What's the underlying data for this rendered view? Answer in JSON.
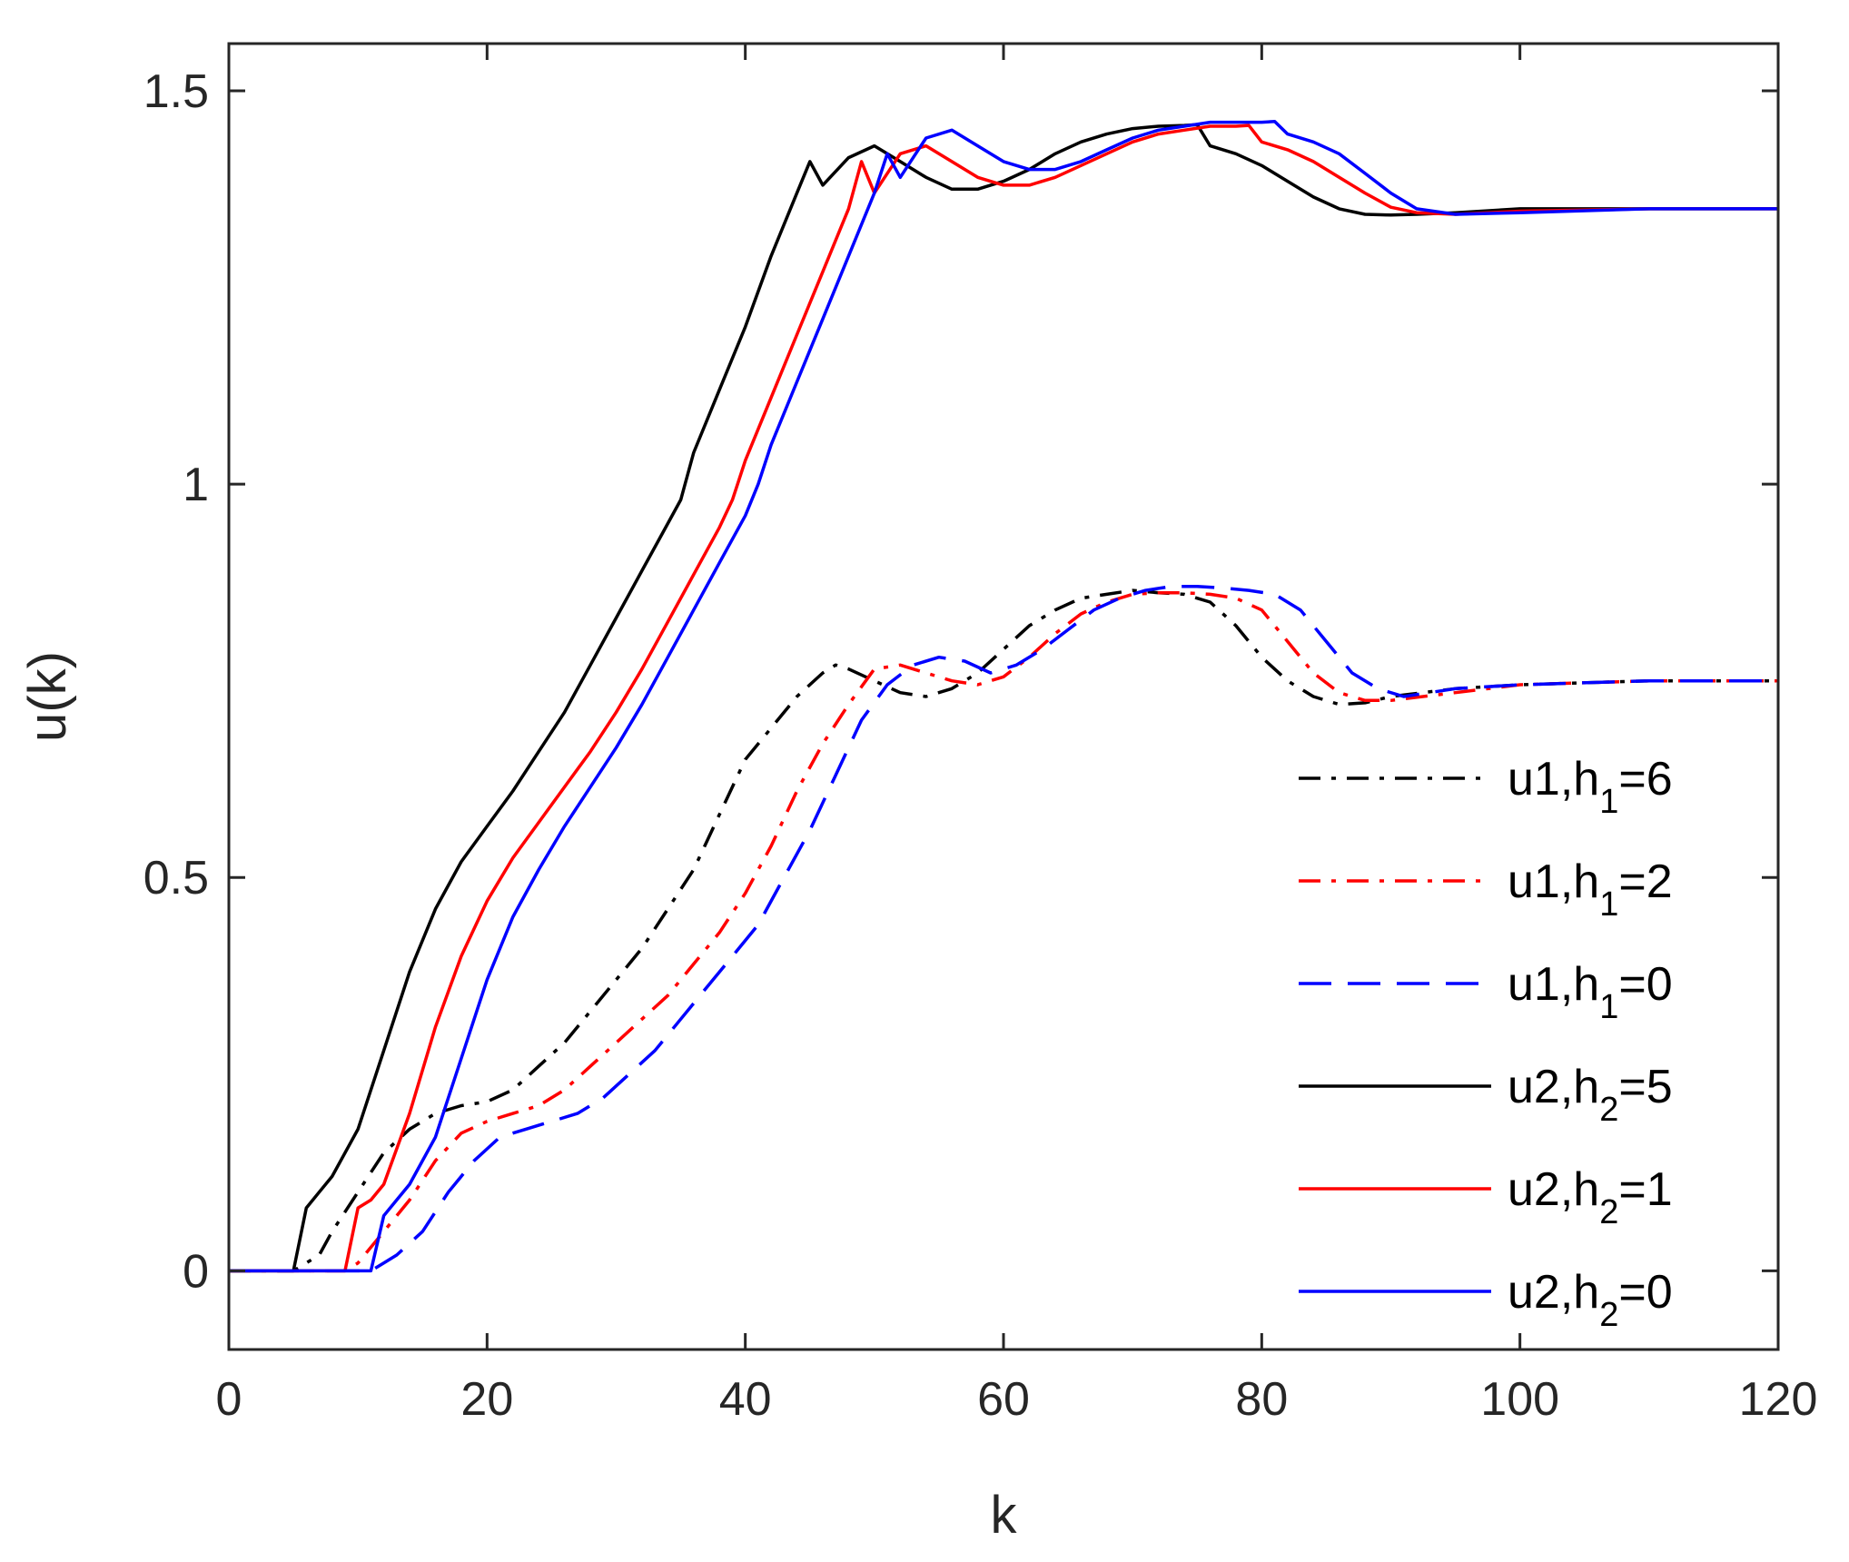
{
  "chart_data": {
    "type": "line",
    "title": "",
    "xlabel": "k",
    "ylabel": "u(k)",
    "xlim": [
      0,
      120
    ],
    "ylim": [
      -0.1,
      1.56
    ],
    "xticks": [
      0,
      20,
      40,
      60,
      80,
      100,
      120
    ],
    "xtick_labels": [
      "0",
      "20",
      "40",
      "60",
      "80",
      "100",
      "120"
    ],
    "yticks": [
      0,
      0.5,
      1,
      1.5
    ],
    "ytick_labels": [
      "0",
      "0.5",
      "1",
      "1.5"
    ],
    "grid": false,
    "legend_position": "lower-right",
    "series": [
      {
        "name": "u1,h1=6",
        "label_main": "u1,h",
        "label_sub": "1",
        "label_tail": "=6",
        "color": "#000000",
        "style": "dashdot",
        "x": [
          0,
          5,
          6,
          7,
          8,
          10,
          12,
          14,
          16,
          18,
          20,
          22,
          24,
          26,
          28,
          30,
          32,
          34,
          36,
          38,
          40,
          42,
          44,
          46,
          47,
          48,
          50,
          52,
          54,
          56,
          58,
          60,
          62,
          64,
          66,
          68,
          70,
          72,
          74,
          76,
          78,
          80,
          82,
          84,
          86,
          88,
          90,
          95,
          100,
          110,
          120
        ],
        "y": [
          0,
          0,
          0.01,
          0.02,
          0.05,
          0.1,
          0.15,
          0.18,
          0.2,
          0.21,
          0.215,
          0.23,
          0.26,
          0.29,
          0.33,
          0.37,
          0.41,
          0.46,
          0.51,
          0.58,
          0.65,
          0.69,
          0.73,
          0.76,
          0.77,
          0.765,
          0.75,
          0.735,
          0.73,
          0.74,
          0.76,
          0.79,
          0.82,
          0.84,
          0.855,
          0.86,
          0.865,
          0.862,
          0.86,
          0.85,
          0.82,
          0.78,
          0.75,
          0.73,
          0.72,
          0.722,
          0.73,
          0.74,
          0.745,
          0.75,
          0.75
        ]
      },
      {
        "name": "u1,h1=2",
        "label_main": "u1,h",
        "label_sub": "1",
        "label_tail": "=2",
        "color": "#ff0000",
        "style": "dashdot",
        "x": [
          0,
          9,
          10,
          12,
          14,
          16,
          18,
          20,
          22,
          24,
          26,
          28,
          30,
          32,
          34,
          36,
          38,
          40,
          42,
          44,
          46,
          48,
          50,
          52,
          54,
          56,
          58,
          60,
          62,
          64,
          66,
          68,
          70,
          72,
          74,
          76,
          78,
          80,
          82,
          84,
          86,
          88,
          90,
          95,
          100,
          110,
          120
        ],
        "y": [
          0,
          0,
          0.01,
          0.05,
          0.09,
          0.14,
          0.175,
          0.19,
          0.2,
          0.21,
          0.23,
          0.26,
          0.29,
          0.32,
          0.35,
          0.39,
          0.43,
          0.48,
          0.54,
          0.61,
          0.67,
          0.72,
          0.765,
          0.77,
          0.76,
          0.75,
          0.745,
          0.755,
          0.78,
          0.81,
          0.835,
          0.85,
          0.86,
          0.862,
          0.862,
          0.86,
          0.855,
          0.84,
          0.8,
          0.76,
          0.735,
          0.725,
          0.725,
          0.735,
          0.745,
          0.75,
          0.75
        ]
      },
      {
        "name": "u1,h1=0",
        "label_main": "u1,h",
        "label_sub": "1",
        "label_tail": "=0",
        "color": "#0000ff",
        "style": "dashed",
        "x": [
          0,
          11,
          12,
          13,
          15,
          17,
          19,
          21,
          23,
          25,
          27,
          29,
          31,
          33,
          35,
          37,
          39,
          41,
          43,
          45,
          47,
          49,
          51,
          53,
          55,
          57,
          59,
          61,
          63,
          65,
          67,
          69,
          71,
          73,
          75,
          77,
          79,
          81,
          83,
          85,
          87,
          89,
          91,
          95,
          100,
          110,
          120
        ],
        "y": [
          0,
          0,
          0.01,
          0.02,
          0.05,
          0.1,
          0.14,
          0.17,
          0.18,
          0.19,
          0.2,
          0.22,
          0.25,
          0.28,
          0.32,
          0.36,
          0.4,
          0.44,
          0.5,
          0.56,
          0.63,
          0.7,
          0.745,
          0.77,
          0.78,
          0.775,
          0.76,
          0.77,
          0.79,
          0.815,
          0.84,
          0.855,
          0.865,
          0.87,
          0.87,
          0.868,
          0.865,
          0.86,
          0.84,
          0.8,
          0.76,
          0.74,
          0.73,
          0.74,
          0.745,
          0.75,
          0.75
        ]
      },
      {
        "name": "u2,h2=5",
        "label_main": "u2,h",
        "label_sub": "2",
        "label_tail": "=5",
        "color": "#000000",
        "style": "solid",
        "x": [
          0,
          5,
          6,
          7,
          8,
          10,
          12,
          14,
          16,
          18,
          20,
          22,
          24,
          26,
          28,
          30,
          32,
          34,
          35,
          36,
          38,
          40,
          42,
          44,
          45,
          46,
          48,
          50,
          52,
          54,
          56,
          58,
          60,
          62,
          64,
          66,
          68,
          70,
          72,
          74,
          75,
          76,
          78,
          80,
          82,
          84,
          86,
          88,
          90,
          92,
          95,
          100,
          110,
          120
        ],
        "y": [
          0,
          0,
          0.08,
          0.1,
          0.12,
          0.18,
          0.28,
          0.38,
          0.46,
          0.52,
          0.565,
          0.61,
          0.66,
          0.71,
          0.77,
          0.83,
          0.89,
          0.95,
          0.98,
          1.04,
          1.12,
          1.2,
          1.29,
          1.37,
          1.41,
          1.38,
          1.415,
          1.43,
          1.41,
          1.39,
          1.375,
          1.375,
          1.385,
          1.4,
          1.42,
          1.435,
          1.445,
          1.452,
          1.455,
          1.456,
          1.457,
          1.43,
          1.42,
          1.405,
          1.385,
          1.365,
          1.35,
          1.343,
          1.342,
          1.343,
          1.345,
          1.35,
          1.35,
          1.35
        ]
      },
      {
        "name": "u2,h2=1",
        "label_main": "u2,h",
        "label_sub": "2",
        "label_tail": "=1",
        "color": "#ff0000",
        "style": "solid",
        "x": [
          0,
          9,
          10,
          11,
          12,
          14,
          16,
          18,
          20,
          22,
          24,
          26,
          28,
          30,
          32,
          34,
          36,
          38,
          39,
          40,
          42,
          44,
          46,
          48,
          49,
          50,
          52,
          54,
          56,
          58,
          60,
          62,
          64,
          66,
          68,
          70,
          72,
          74,
          76,
          78,
          79,
          80,
          82,
          84,
          86,
          88,
          90,
          92,
          95,
          100,
          110,
          120
        ],
        "y": [
          0,
          0,
          0.08,
          0.09,
          0.11,
          0.2,
          0.31,
          0.4,
          0.47,
          0.525,
          0.57,
          0.615,
          0.66,
          0.71,
          0.765,
          0.825,
          0.885,
          0.945,
          0.98,
          1.03,
          1.11,
          1.19,
          1.27,
          1.35,
          1.41,
          1.37,
          1.42,
          1.43,
          1.41,
          1.39,
          1.38,
          1.38,
          1.39,
          1.405,
          1.42,
          1.435,
          1.445,
          1.45,
          1.455,
          1.455,
          1.456,
          1.435,
          1.425,
          1.41,
          1.39,
          1.37,
          1.352,
          1.345,
          1.343,
          1.347,
          1.35,
          1.35
        ]
      },
      {
        "name": "u2,h2=0",
        "label_main": "u2,h",
        "label_sub": "2",
        "label_tail": "=0",
        "color": "#0000ff",
        "style": "solid",
        "x": [
          0,
          11,
          12,
          13,
          14,
          16,
          18,
          20,
          22,
          24,
          26,
          28,
          30,
          32,
          34,
          36,
          38,
          40,
          41,
          42,
          44,
          46,
          48,
          50,
          51,
          52,
          54,
          56,
          58,
          60,
          62,
          64,
          66,
          68,
          70,
          72,
          74,
          76,
          78,
          80,
          81,
          82,
          84,
          86,
          88,
          90,
          92,
          95,
          100,
          110,
          120
        ],
        "y": [
          0,
          0,
          0.07,
          0.09,
          0.11,
          0.17,
          0.27,
          0.37,
          0.45,
          0.51,
          0.565,
          0.615,
          0.665,
          0.72,
          0.78,
          0.84,
          0.9,
          0.96,
          1.0,
          1.05,
          1.13,
          1.21,
          1.29,
          1.37,
          1.42,
          1.39,
          1.44,
          1.45,
          1.43,
          1.41,
          1.4,
          1.4,
          1.41,
          1.425,
          1.44,
          1.45,
          1.455,
          1.46,
          1.46,
          1.46,
          1.461,
          1.445,
          1.435,
          1.42,
          1.395,
          1.37,
          1.35,
          1.343,
          1.345,
          1.35,
          1.35
        ]
      }
    ]
  }
}
